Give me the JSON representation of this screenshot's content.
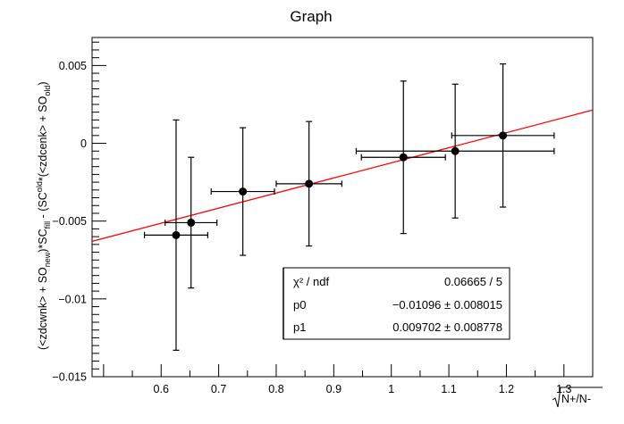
{
  "chart_data": {
    "type": "scatter",
    "title": "Graph",
    "xlabel": "N+/N-",
    "xlabel_sqrt": true,
    "ylabel_parts": {
      "a": "(<zdcwnk> + SO",
      "a_sub": "new",
      "b": ")*SC",
      "b_sub": "fill",
      "c": " - (SC",
      "c_sub": "old",
      "d": "*(<zdcenk> + SO",
      "d_sub": "old",
      "e": ")"
    },
    "xlim": [
      0.48,
      1.35
    ],
    "ylim": [
      -0.015,
      0.0068
    ],
    "x_ticks": [
      {
        "v": 0.6,
        "label": "0.6"
      },
      {
        "v": 0.7,
        "label": "0.7"
      },
      {
        "v": 0.8,
        "label": "0.8"
      },
      {
        "v": 0.9,
        "label": "0.9"
      },
      {
        "v": 1.0,
        "label": "1"
      },
      {
        "v": 1.1,
        "label": "1.1"
      },
      {
        "v": 1.2,
        "label": "1.2"
      },
      {
        "v": 1.3,
        "label": "1.3"
      }
    ],
    "y_ticks": [
      {
        "v": -0.015,
        "label": "−0.015"
      },
      {
        "v": -0.01,
        "label": "−0.01"
      },
      {
        "v": -0.005,
        "label": "−0.005"
      },
      {
        "v": 0.0,
        "label": "0"
      },
      {
        "v": 0.005,
        "label": "0.005"
      }
    ],
    "points": [
      {
        "x": 0.626,
        "y": -0.0059,
        "xerr": 0.055,
        "yerr": 0.0074
      },
      {
        "x": 0.652,
        "y": -0.0051,
        "xerr": 0.045,
        "yerr": 0.0042
      },
      {
        "x": 0.742,
        "y": -0.0031,
        "xerr": 0.055,
        "yerr": 0.0041
      },
      {
        "x": 0.857,
        "y": -0.0026,
        "xerr": 0.057,
        "yerr": 0.004
      },
      {
        "x": 1.021,
        "y": -0.0009,
        "xerr": 0.073,
        "yerr": 0.0049
      },
      {
        "x": 1.111,
        "y": -0.0005,
        "xerr": 0.172,
        "yerr": 0.0043
      },
      {
        "x": 1.194,
        "y": 0.0005,
        "xerr": 0.089,
        "yerr": 0.0046
      }
    ],
    "fit": {
      "p0": -0.01096,
      "p1": 0.009702,
      "color": "#ff0000"
    },
    "stats": [
      {
        "key": "χ² / ndf",
        "value": "0.06665 / 5"
      },
      {
        "key": "p0",
        "value": "−0.01096 ± 0.008015"
      },
      {
        "key": "p1",
        "value": "0.009702 ± 0.008778"
      }
    ]
  }
}
